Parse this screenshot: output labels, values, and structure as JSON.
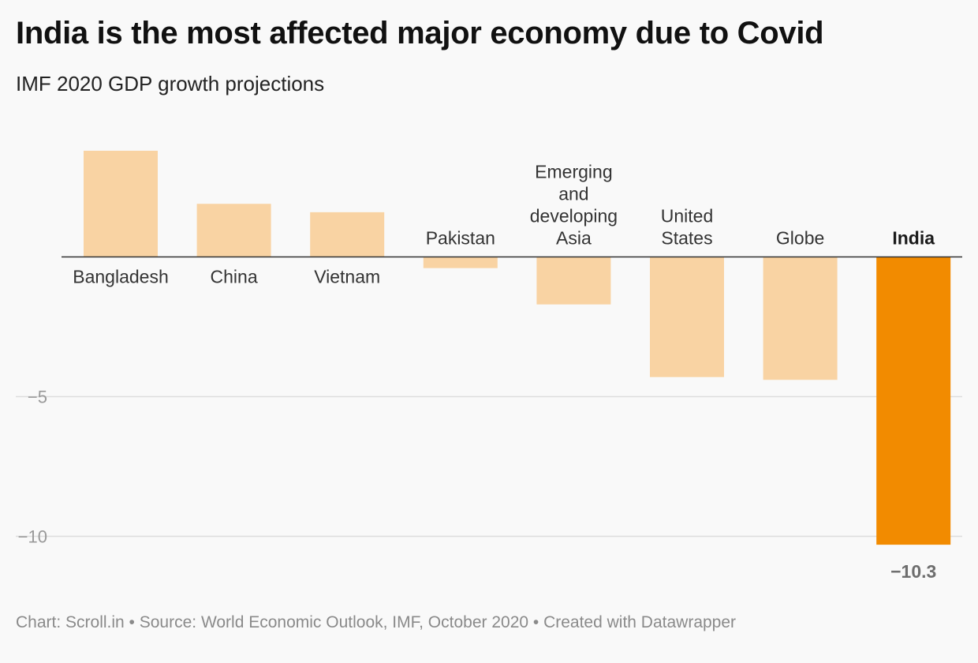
{
  "page": {
    "title": "India is the most affected major economy due to Covid",
    "subtitle": "IMF 2020 GDP growth projections",
    "footer": "Chart: Scroll.in • Source: World Economic Outlook, IMF, October 2020 • Created with Datawrapper"
  },
  "chart_data": {
    "type": "bar",
    "categories": [
      [
        "Bangladesh"
      ],
      [
        "China"
      ],
      [
        "Vietnam"
      ],
      [
        "Pakistan"
      ],
      [
        "Emerging",
        "and",
        "developing",
        "Asia"
      ],
      [
        "United",
        "States"
      ],
      [
        "Globe"
      ],
      [
        "India"
      ]
    ],
    "values": [
      3.8,
      1.9,
      1.6,
      -0.4,
      -1.7,
      -4.3,
      -4.4,
      -10.3
    ],
    "highlight": "India",
    "data_labels": [
      {
        "category": "India",
        "text": "−10.3"
      }
    ],
    "ylim": [
      -10.3,
      3.8
    ],
    "yticks": [
      {
        "value": -5,
        "label": "−5"
      },
      {
        "value": -10,
        "label": "−10"
      }
    ],
    "grid": true,
    "colors": {
      "bar": "#f9d3a3",
      "highlight": "#f28b00",
      "zero_line": "#333333",
      "grid": "#dddddd",
      "tick_label": "#999999",
      "data_label": "#6e6e6e"
    }
  }
}
